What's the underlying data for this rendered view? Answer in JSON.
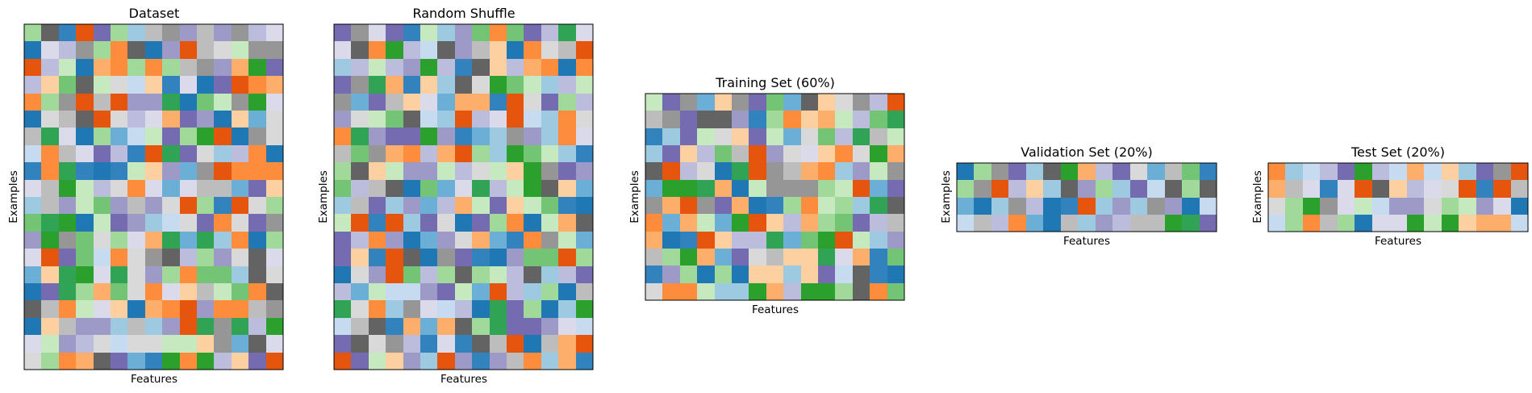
{
  "figure": {
    "cell_colors": [
      "#1f77b4",
      "#2ca02c",
      "#e6550d",
      "#fd8d3c",
      "#fdae6b",
      "#fdd0a2",
      "#31a354",
      "#74c476",
      "#a1d99b",
      "#c7e9c0",
      "#756bb1",
      "#9e9ac8",
      "#bcbddc",
      "#dadaeb",
      "#636363",
      "#969696",
      "#bdbdbd",
      "#d9d9d9",
      "#3182bd",
      "#6baed6",
      "#9ecae1",
      "#c6dbef"
    ],
    "axis_color": "#000000"
  },
  "chart_data": [
    {
      "type": "heatmap",
      "title": "Dataset",
      "xlabel": "Features",
      "ylabel": "Examples",
      "n_rows": 20,
      "n_cols": 15,
      "xticks": false,
      "yticks": false,
      "values": [
        [
          8,
          14,
          18,
          2,
          10,
          8,
          20,
          16,
          15,
          11,
          16,
          11,
          15,
          12,
          13
        ],
        [
          0,
          13,
          12,
          15,
          8,
          3,
          14,
          0,
          11,
          2,
          16,
          17,
          9,
          15,
          15
        ],
        [
          2,
          12,
          9,
          0,
          4,
          3,
          8,
          3,
          8,
          16,
          15,
          11,
          4,
          1,
          10
        ],
        [
          12,
          5,
          7,
          14,
          9,
          17,
          21,
          5,
          18,
          13,
          0,
          10,
          2,
          3,
          4
        ],
        [
          3,
          8,
          15,
          2,
          16,
          2,
          11,
          11,
          6,
          0,
          7,
          9,
          15,
          1,
          13
        ],
        [
          0,
          17,
          16,
          14,
          2,
          17,
          12,
          13,
          4,
          10,
          11,
          0,
          5,
          19,
          17
        ],
        [
          16,
          6,
          13,
          0,
          8,
          19,
          21,
          9,
          10,
          8,
          1,
          2,
          0,
          15,
          17
        ],
        [
          21,
          3,
          16,
          13,
          10,
          12,
          18,
          2,
          6,
          10,
          17,
          20,
          12,
          3,
          0
        ],
        [
          18,
          3,
          6,
          18,
          0,
          18,
          9,
          5,
          11,
          19,
          15,
          2,
          3,
          3,
          3
        ],
        [
          13,
          16,
          1,
          9,
          12,
          17,
          3,
          13,
          19,
          13,
          16,
          16,
          19,
          10,
          5
        ],
        [
          20,
          16,
          11,
          9,
          7,
          11,
          16,
          11,
          17,
          2,
          8,
          18,
          2,
          17,
          8
        ],
        [
          7,
          6,
          1,
          0,
          9,
          10,
          11,
          20,
          21,
          17,
          10,
          3,
          17,
          10,
          15
        ],
        [
          11,
          1,
          15,
          7,
          17,
          8,
          13,
          4,
          6,
          19,
          6,
          20,
          3,
          0,
          8
        ],
        [
          13,
          2,
          10,
          7,
          21,
          3,
          17,
          15,
          14,
          12,
          8,
          11,
          17,
          14,
          13
        ],
        [
          19,
          5,
          6,
          1,
          13,
          6,
          17,
          11,
          8,
          3,
          7,
          7,
          20,
          14,
          17
        ],
        [
          0,
          10,
          6,
          8,
          4,
          7,
          17,
          3,
          13,
          5,
          16,
          9,
          7,
          3,
          14
        ],
        [
          14,
          16,
          3,
          9,
          13,
          5,
          0,
          4,
          3,
          2,
          11,
          3,
          3,
          16,
          15
        ],
        [
          0,
          5,
          16,
          11,
          11,
          20,
          16,
          20,
          11,
          2,
          6,
          15,
          6,
          12,
          1
        ],
        [
          13,
          9,
          11,
          12,
          17,
          21,
          17,
          17,
          9,
          9,
          5,
          15,
          19,
          14,
          13
        ],
        [
          17,
          8,
          3,
          4,
          14,
          10,
          19,
          18,
          1,
          3,
          1,
          12,
          5,
          10,
          2
        ]
      ]
    },
    {
      "type": "heatmap",
      "title": "Random Shuffle",
      "xlabel": "Features",
      "ylabel": "Examples",
      "n_rows": 20,
      "n_cols": 15,
      "xticks": false,
      "yticks": false,
      "values": [
        [
          10,
          15,
          13,
          10,
          18,
          9,
          20,
          11,
          7,
          3,
          7,
          10,
          12,
          6,
          13
        ],
        [
          13,
          14,
          3,
          1,
          12,
          21,
          14,
          11,
          16,
          5,
          0,
          3,
          17,
          16,
          2
        ],
        [
          20,
          12,
          9,
          12,
          11,
          1,
          12,
          18,
          14,
          5,
          12,
          4,
          3,
          0,
          3
        ],
        [
          10,
          15,
          6,
          4,
          18,
          5,
          20,
          14,
          17,
          1,
          7,
          9,
          20,
          12,
          9
        ],
        [
          15,
          19,
          10,
          16,
          5,
          13,
          19,
          4,
          4,
          18,
          2,
          17,
          10,
          8,
          12
        ],
        [
          11,
          17,
          9,
          7,
          14,
          21,
          20,
          2,
          12,
          13,
          2,
          21,
          20,
          3,
          17
        ],
        [
          3,
          6,
          11,
          10,
          10,
          1,
          11,
          18,
          19,
          20,
          15,
          11,
          20,
          3,
          13
        ],
        [
          16,
          7,
          15,
          4,
          3,
          12,
          4,
          2,
          8,
          20,
          1,
          7,
          9,
          20,
          18
        ],
        [
          8,
          14,
          5,
          9,
          11,
          11,
          9,
          12,
          17,
          9,
          5,
          1,
          15,
          10,
          11
        ],
        [
          7,
          12,
          16,
          14,
          0,
          7,
          19,
          13,
          6,
          12,
          9,
          1,
          14,
          5,
          19
        ],
        [
          20,
          16,
          10,
          20,
          11,
          19,
          12,
          4,
          9,
          10,
          5,
          9,
          7,
          18,
          0
        ],
        [
          9,
          2,
          18,
          2,
          20,
          10,
          17,
          0,
          10,
          8,
          3,
          0,
          9,
          4,
          14
        ],
        [
          10,
          12,
          3,
          11,
          0,
          19,
          11,
          17,
          4,
          19,
          18,
          3,
          15,
          9,
          19
        ],
        [
          10,
          5,
          18,
          2,
          14,
          0,
          15,
          10,
          18,
          0,
          11,
          7,
          7,
          2,
          8
        ],
        [
          0,
          17,
          11,
          2,
          7,
          12,
          8,
          14,
          8,
          9,
          12,
          14,
          20,
          12,
          10
        ],
        [
          12,
          19,
          9,
          21,
          21,
          11,
          10,
          9,
          19,
          2,
          12,
          20,
          8,
          0,
          16
        ],
        [
          6,
          17,
          3,
          20,
          15,
          13,
          21,
          12,
          0,
          6,
          10,
          8,
          0,
          20,
          1
        ],
        [
          21,
          16,
          14,
          18,
          4,
          19,
          4,
          14,
          8,
          6,
          10,
          10,
          11,
          13,
          21
        ],
        [
          10,
          14,
          17,
          15,
          12,
          18,
          13,
          18,
          14,
          16,
          2,
          0,
          16,
          4,
          2
        ],
        [
          2,
          10,
          9,
          5,
          11,
          20,
          2,
          11,
          18,
          11,
          16,
          3,
          20,
          4,
          18
        ]
      ]
    },
    {
      "type": "heatmap",
      "title": "Training Set (60%)",
      "xlabel": "Features",
      "ylabel": "Examples",
      "n_rows": 12,
      "n_cols": 15,
      "xticks": false,
      "yticks": false,
      "values": [
        [
          9,
          10,
          15,
          19,
          5,
          15,
          10,
          7,
          19,
          14,
          5,
          17,
          15,
          12,
          2
        ],
        [
          16,
          15,
          10,
          14,
          14,
          11,
          18,
          8,
          3,
          5,
          4,
          9,
          12,
          7,
          6
        ],
        [
          18,
          20,
          10,
          9,
          17,
          5,
          10,
          9,
          19,
          17,
          7,
          12,
          6,
          16,
          9
        ],
        [
          20,
          10,
          5,
          12,
          7,
          16,
          2,
          11,
          17,
          13,
          5,
          3,
          17,
          1,
          4
        ],
        [
          14,
          2,
          12,
          17,
          0,
          6,
          2,
          15,
          16,
          4,
          3,
          20,
          11,
          9,
          15
        ],
        [
          19,
          1,
          1,
          6,
          4,
          0,
          9,
          15,
          15,
          15,
          8,
          9,
          2,
          19,
          10
        ],
        [
          15,
          4,
          2,
          15,
          10,
          4,
          0,
          18,
          8,
          3,
          9,
          8,
          20,
          6,
          14
        ],
        [
          3,
          19,
          4,
          9,
          19,
          1,
          2,
          5,
          12,
          4,
          8,
          7,
          10,
          12,
          16
        ],
        [
          4,
          0,
          18,
          2,
          5,
          12,
          12,
          6,
          19,
          7,
          1,
          2,
          9,
          20,
          11
        ],
        [
          16,
          8,
          1,
          4,
          19,
          10,
          17,
          16,
          5,
          5,
          6,
          13,
          4,
          18,
          7
        ],
        [
          18,
          11,
          8,
          0,
          8,
          0,
          5,
          5,
          20,
          5,
          10,
          21,
          14,
          18,
          0
        ],
        [
          17,
          3,
          3,
          9,
          20,
          20,
          1,
          4,
          12,
          1,
          1,
          8,
          14,
          3,
          7
        ]
      ]
    },
    {
      "type": "heatmap",
      "title": "Validation Set (20%)",
      "xlabel": "Features",
      "ylabel": "Examples",
      "n_rows": 4,
      "n_cols": 15,
      "xticks": false,
      "yticks": false,
      "values": [
        [
          0,
          8,
          15,
          10,
          20,
          14,
          1,
          4,
          12,
          10,
          17,
          19,
          16,
          7,
          18
        ],
        [
          8,
          15,
          2,
          12,
          5,
          20,
          14,
          11,
          8,
          20,
          10,
          21,
          14,
          8,
          14
        ],
        [
          19,
          0,
          20,
          15,
          12,
          0,
          18,
          2,
          20,
          11,
          20,
          15,
          11,
          0,
          21
        ],
        [
          21,
          16,
          12,
          3,
          19,
          0,
          16,
          20,
          11,
          12,
          16,
          16,
          1,
          6,
          10
        ]
      ]
    },
    {
      "type": "heatmap",
      "title": "Test Set (20%)",
      "xlabel": "Features",
      "ylabel": "Examples",
      "n_rows": 4,
      "n_cols": 15,
      "xticks": false,
      "yticks": false,
      "values": [
        [
          3,
          20,
          21,
          12,
          10,
          1,
          12,
          21,
          4,
          21,
          5,
          20,
          10,
          15,
          2
        ],
        [
          4,
          16,
          13,
          18,
          13,
          2,
          14,
          5,
          12,
          13,
          17,
          2,
          18,
          2,
          16
        ],
        [
          17,
          8,
          1,
          15,
          13,
          9,
          21,
          11,
          11,
          17,
          8,
          9,
          11,
          13,
          0
        ],
        [
          21,
          8,
          3,
          16,
          8,
          0,
          13,
          13,
          1,
          9,
          1,
          5,
          4,
          4,
          21
        ]
      ]
    }
  ]
}
